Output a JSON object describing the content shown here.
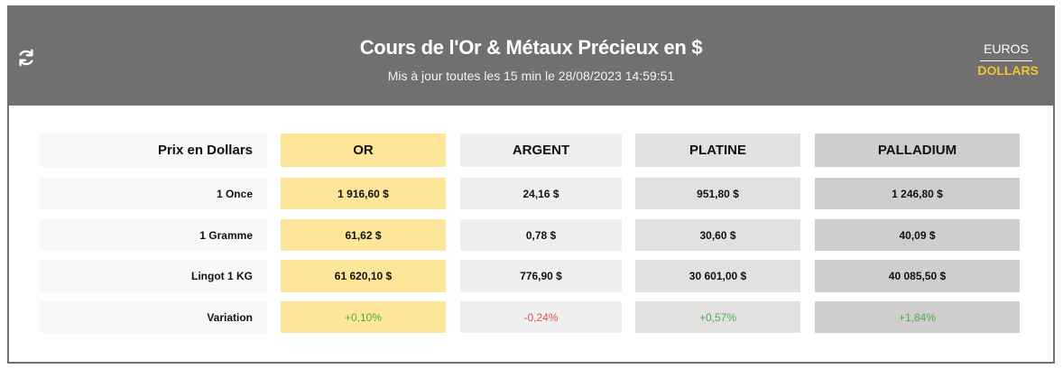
{
  "header": {
    "title": "Cours de l'Or & Métaux Précieux en $",
    "subtitle": "Mis à jour toutes les 15 min le 28/08/2023 14:59:51",
    "refresh_icon": "refresh-icon",
    "currencies": [
      {
        "label": "EUROS",
        "active": false
      },
      {
        "label": "DOLLARS",
        "active": true
      }
    ]
  },
  "colors": {
    "header": "#72706e",
    "active_currency": "#f1c232",
    "or": "#fde59a",
    "argent": "#efefef",
    "platine": "#e2e1e0",
    "palladium": "#cfcecd",
    "positive": "#4cae4c",
    "negative": "#d9534f"
  },
  "table": {
    "corner": "Prix en Dollars",
    "columns": [
      "OR",
      "ARGENT",
      "PLATINE",
      "PALLADIUM"
    ],
    "rows": [
      {
        "label": "1 Once",
        "values": [
          "1 916,60 $",
          "24,16 $",
          "951,80 $",
          "1 246,80 $"
        ]
      },
      {
        "label": "1 Gramme",
        "values": [
          "61,62 $",
          "0,78 $",
          "30,60 $",
          "40,09 $"
        ]
      },
      {
        "label": "Lingot 1 KG",
        "values": [
          "61 620,10 $",
          "776,90 $",
          "30 601,00 $",
          "40 085,50 $"
        ]
      },
      {
        "label": "Variation",
        "values": [
          "+0,10%",
          "-0,24%",
          "+0,57%",
          "+1,84%"
        ]
      }
    ]
  }
}
